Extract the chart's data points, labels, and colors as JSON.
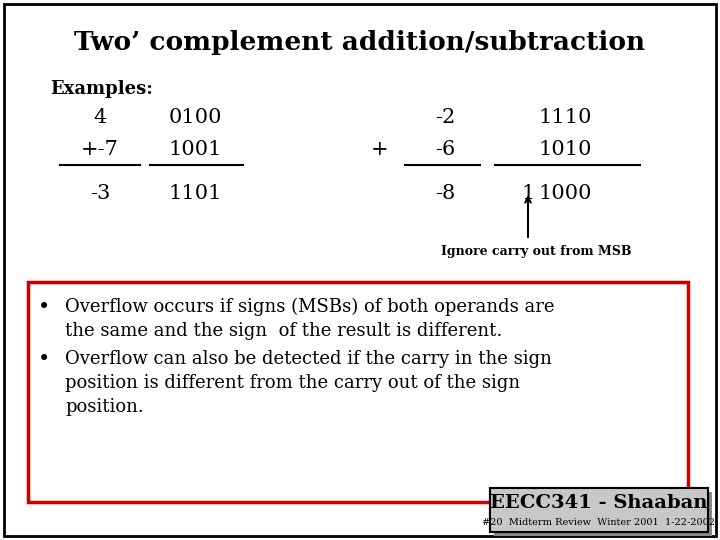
{
  "title": "Two’ complement addition/subtraction",
  "bg_color": "#ffffff",
  "border_color": "#000000",
  "red_box_color": "#cc0000",
  "examples_label": "Examples:",
  "carry_label": "Ignore carry out from MSB",
  "bullet1_line1": "Overflow occurs if signs (MSBs) of both operands are",
  "bullet1_line2": "the same and the sign  of the result is different.",
  "bullet2_line1": "Overflow can also be detected if the carry in the sign",
  "bullet2_line2": "position is different from the carry out of the sign",
  "bullet2_line3": "position.",
  "footer": "EECC341 - Shaaban",
  "footer_sub": "#20  Midterm Review  Winter 2001  1-22-2002",
  "title_fontsize": 19,
  "examples_fontsize": 13,
  "mono_fontsize": 15,
  "bullet_fontsize": 13,
  "footer_fontsize": 13,
  "footer_sub_fontsize": 7
}
